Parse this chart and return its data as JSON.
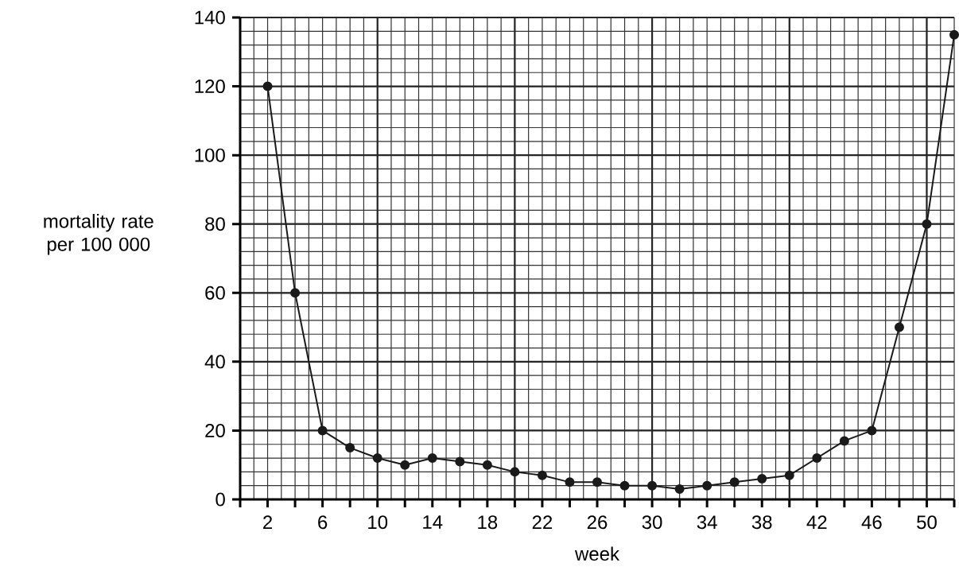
{
  "chart_data": {
    "type": "line",
    "xlabel": "week",
    "ylabel": "mortality rate per 100 000",
    "x": [
      2,
      4,
      6,
      8,
      10,
      12,
      14,
      16,
      18,
      20,
      22,
      24,
      26,
      28,
      30,
      32,
      34,
      36,
      38,
      40,
      42,
      44,
      46,
      48,
      50,
      52
    ],
    "series": [
      {
        "color": "#1a1a1a",
        "values": [
          120,
          60,
          20,
          15,
          12,
          10,
          12,
          11,
          10,
          8,
          7,
          5,
          5,
          4,
          4,
          3,
          4,
          5,
          6,
          7,
          12,
          17,
          20,
          50,
          80,
          135
        ]
      }
    ],
    "xlim": [
      0,
      52
    ],
    "xticks": [
      {
        "value": 0,
        "label": null
      },
      2,
      {
        "value": 4,
        "label": null
      },
      6,
      {
        "value": 8,
        "label": null
      },
      10,
      {
        "value": 12,
        "label": null
      },
      14,
      {
        "value": 16,
        "label": null
      },
      18,
      {
        "value": 20,
        "label": null
      },
      22,
      {
        "value": 24,
        "label": null
      },
      26,
      {
        "value": 28,
        "label": null
      },
      30,
      {
        "value": 32,
        "label": null
      },
      34,
      {
        "value": 36,
        "label": null
      },
      38,
      {
        "value": 40,
        "label": null
      },
      42,
      {
        "value": 44,
        "label": null
      },
      46,
      {
        "value": 48,
        "label": null
      },
      50,
      {
        "value": 52,
        "label": null
      }
    ],
    "ylim": [
      0,
      140
    ],
    "yticks": [
      0,
      20,
      40,
      60,
      80,
      100,
      120,
      140
    ],
    "grid": true,
    "marker": "circle",
    "line_style": "solid"
  }
}
